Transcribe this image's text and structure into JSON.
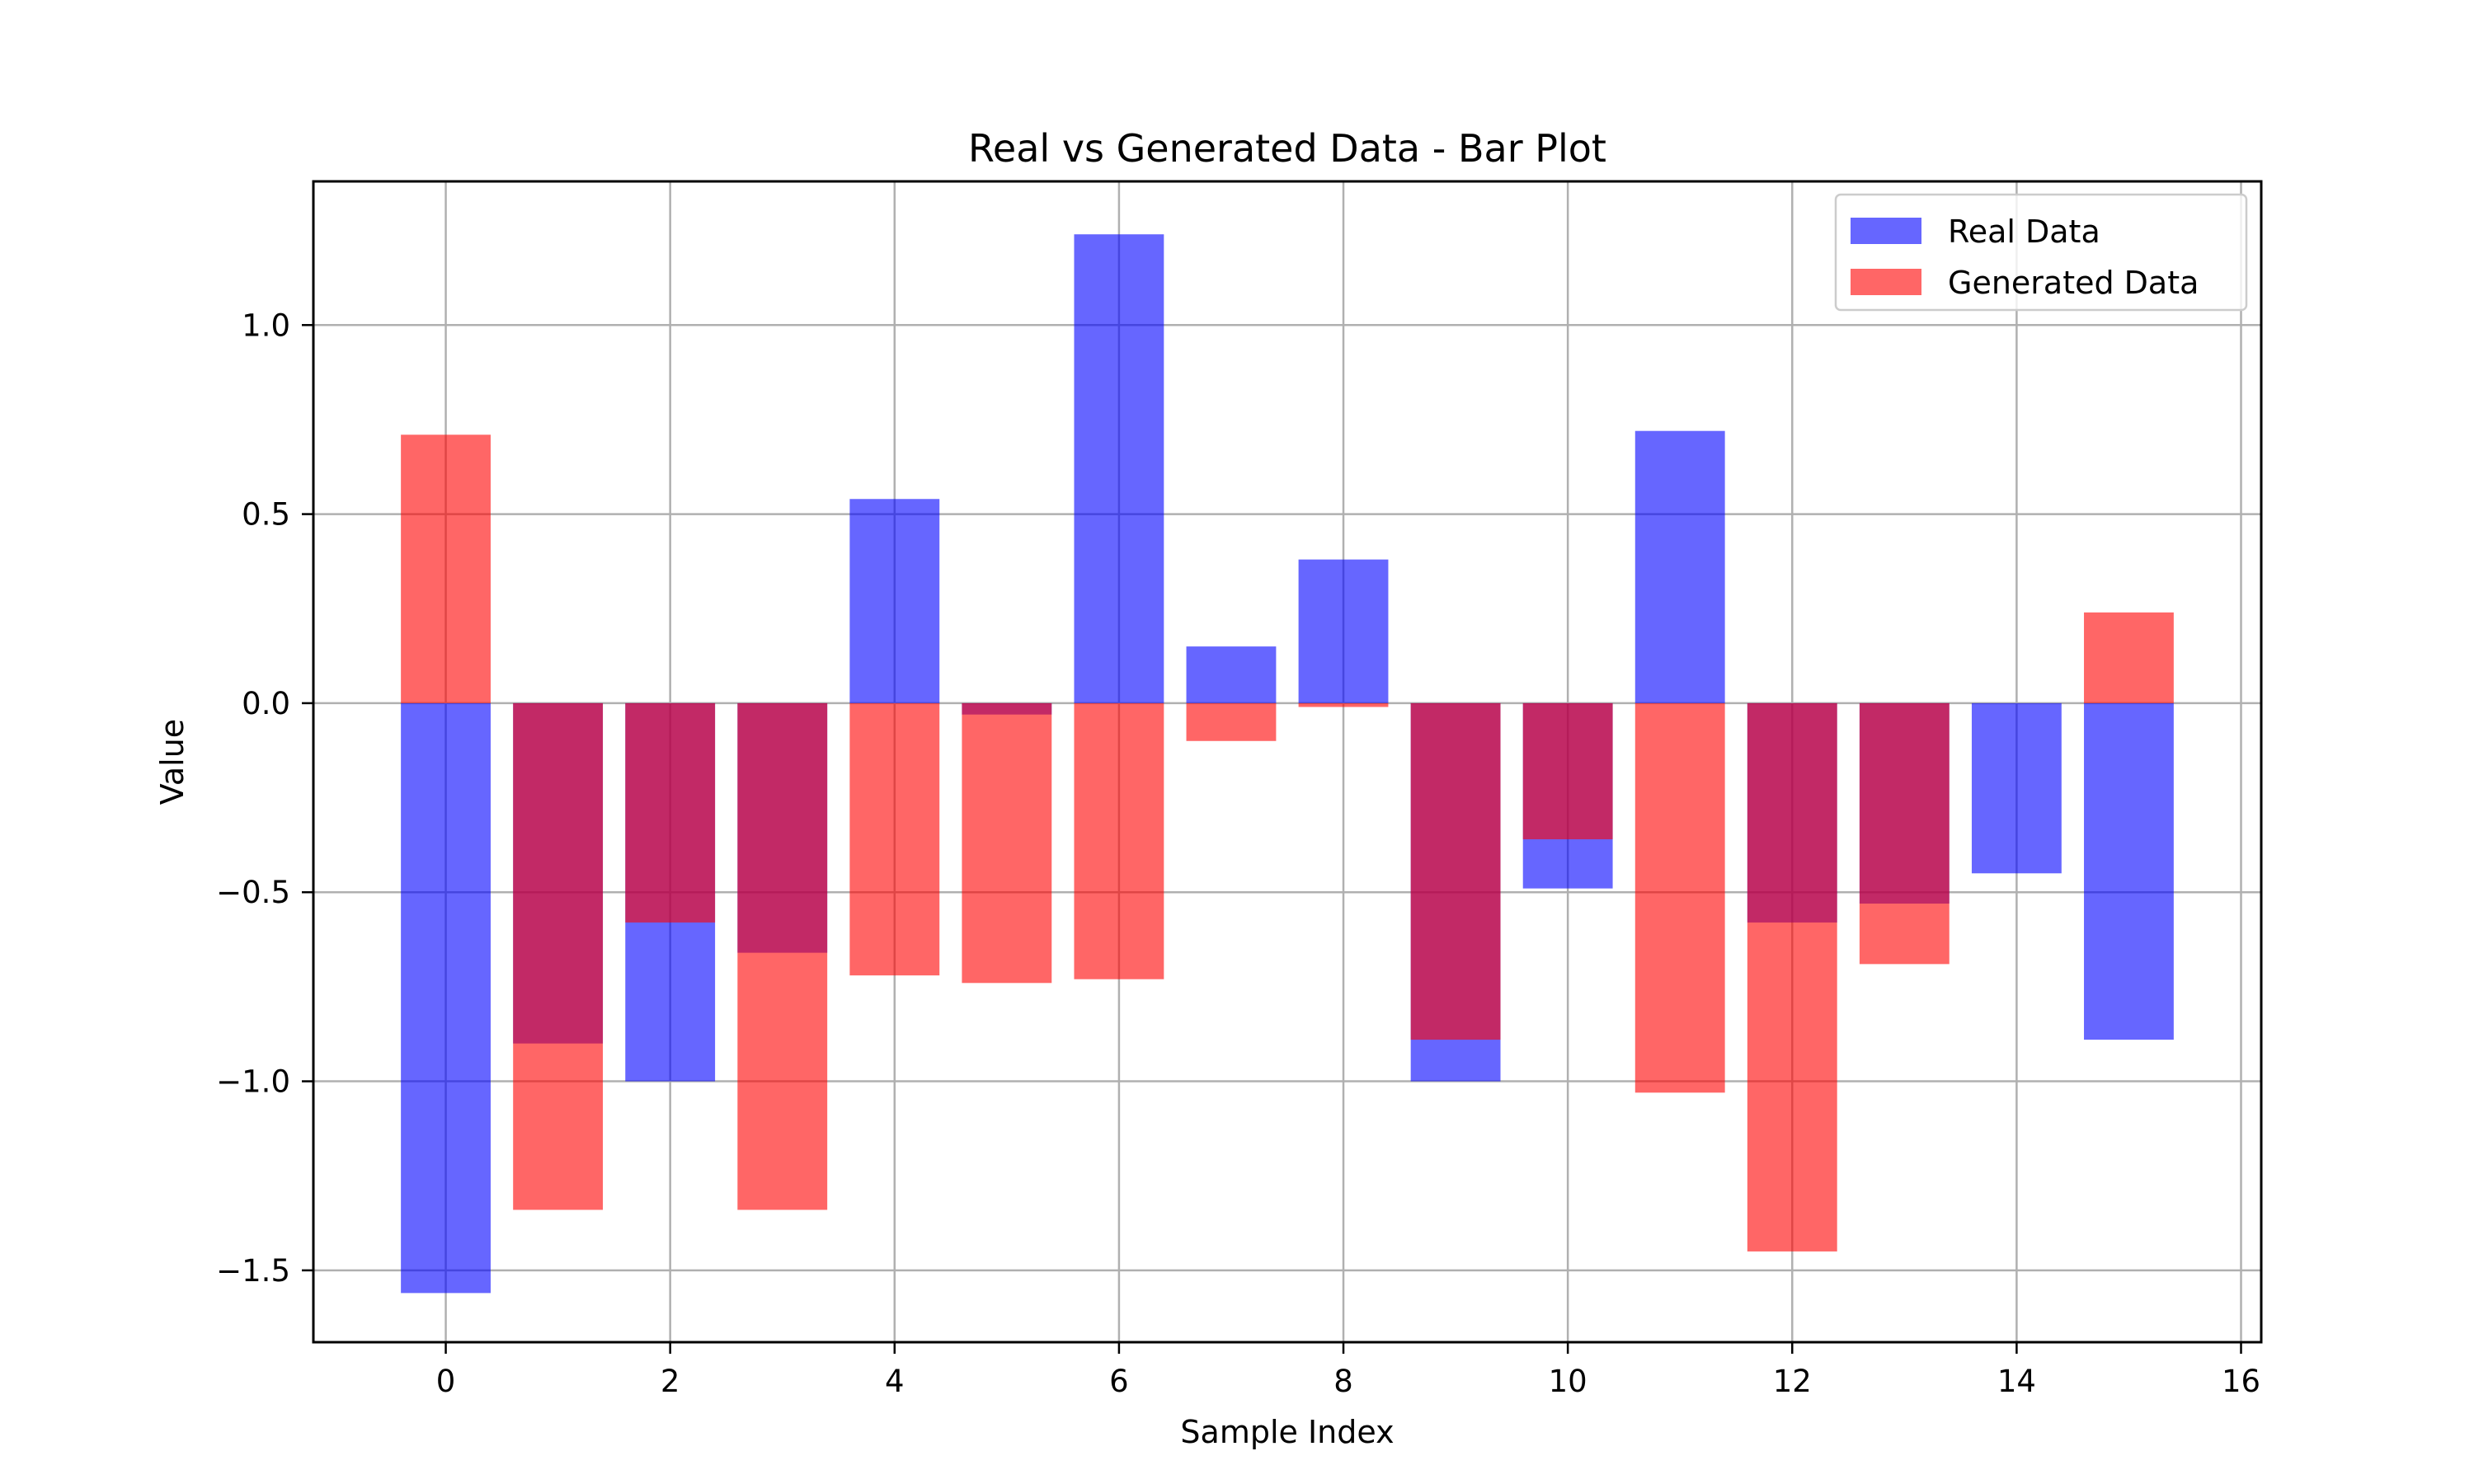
{
  "chart_data": {
    "type": "bar",
    "title": "Real vs Generated Data - Bar Plot",
    "xlabel": "Sample Index",
    "ylabel": "Value",
    "x": [
      0,
      1,
      2,
      3,
      4,
      5,
      6,
      7,
      8,
      9,
      10,
      11,
      12,
      13,
      14,
      15
    ],
    "series": [
      {
        "name": "Real Data",
        "color": "#0000ff",
        "alpha": 0.6,
        "values": [
          -1.56,
          -0.9,
          -1.0,
          -0.66,
          0.54,
          -0.03,
          1.24,
          0.15,
          0.38,
          -1.0,
          -0.49,
          0.72,
          -0.58,
          -0.53,
          -0.45,
          -0.89
        ]
      },
      {
        "name": "Generated Data",
        "color": "#ff0000",
        "alpha": 0.6,
        "values": [
          0.71,
          -1.34,
          -0.58,
          -1.34,
          -0.72,
          -0.74,
          -0.73,
          -0.1,
          -0.01,
          -0.89,
          -0.36,
          -1.03,
          -1.45,
          -0.69,
          0.0,
          0.24
        ]
      }
    ],
    "xlim": [
      -1.18,
      16.18
    ],
    "ylim": [
      -1.69,
      1.38
    ],
    "xticks": [
      0,
      2,
      4,
      6,
      8,
      10,
      12,
      14,
      16
    ],
    "yticks": [
      -1.5,
      -1.0,
      -0.5,
      0.0,
      0.5,
      1.0
    ],
    "ytick_labels": [
      "−1.5",
      "−1.0",
      "−0.5",
      "0.0",
      "0.5",
      "1.0"
    ],
    "bar_width": 0.8,
    "grid": true,
    "legend_position": "top-right"
  }
}
